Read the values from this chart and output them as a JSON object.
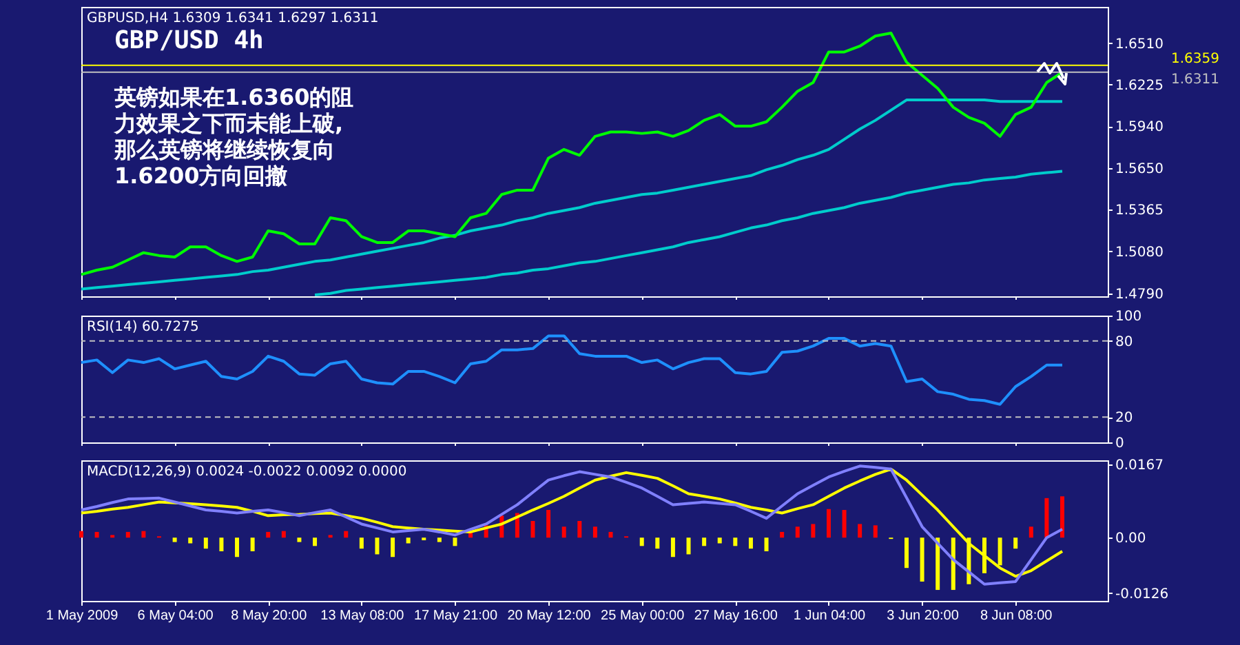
{
  "chart_data": [
    {
      "type": "line",
      "title": "GBP/USD 4h",
      "subtitle": "GBPUSD,H4 1.6309 1.6341 1.6297 1.6311",
      "series": [
        {
          "color": "#00cccc",
          "values": [
            null,
            null,
            null,
            null,
            null,
            null,
            null,
            null,
            null,
            null,
            null,
            null,
            null,
            null,
            null,
            1.478,
            1.479,
            1.481,
            1.482,
            1.483,
            1.484,
            1.485,
            1.486,
            1.487,
            1.488,
            1.489,
            1.49,
            1.492,
            1.493,
            1.495,
            1.496,
            1.498,
            1.5,
            1.501,
            1.503,
            1.505,
            1.507,
            1.509,
            1.511,
            1.514,
            1.516,
            1.518,
            1.521,
            1.524,
            1.526,
            1.529,
            1.531,
            1.534,
            1.536,
            1.538,
            1.541,
            1.543,
            1.545,
            1.548,
            1.55,
            1.552,
            1.554,
            1.555,
            1.557,
            1.558,
            1.559,
            1.561,
            1.562,
            1.563
          ]
        },
        {
          "color": "#00cccc",
          "values": [
            1.482,
            1.483,
            1.484,
            1.485,
            1.486,
            1.487,
            1.488,
            1.489,
            1.49,
            1.491,
            1.492,
            1.494,
            1.495,
            1.497,
            1.499,
            1.501,
            1.502,
            1.504,
            1.506,
            1.508,
            1.51,
            1.512,
            1.514,
            1.517,
            1.519,
            1.522,
            1.524,
            1.526,
            1.529,
            1.531,
            1.534,
            1.536,
            1.538,
            1.541,
            1.543,
            1.545,
            1.547,
            1.548,
            1.55,
            1.552,
            1.554,
            1.556,
            1.558,
            1.56,
            1.564,
            1.567,
            1.571,
            1.574,
            1.578,
            1.585,
            1.592,
            1.598,
            1.605,
            1.612,
            1.612,
            1.612,
            1.612,
            1.612,
            1.612,
            1.611,
            1.611,
            1.611,
            1.611,
            1.611
          ]
        },
        {
          "color": "#00ff00",
          "values": [
            1.492,
            1.495,
            1.497,
            1.502,
            1.507,
            1.505,
            1.504,
            1.511,
            1.511,
            1.505,
            1.501,
            1.504,
            1.522,
            1.52,
            1.513,
            1.513,
            1.531,
            1.529,
            1.518,
            1.514,
            1.514,
            1.522,
            1.522,
            1.52,
            1.518,
            1.531,
            1.534,
            1.547,
            1.55,
            1.55,
            1.572,
            1.578,
            1.574,
            1.587,
            1.59,
            1.59,
            1.589,
            1.59,
            1.587,
            1.591,
            1.598,
            1.602,
            1.594,
            1.594,
            1.597,
            1.607,
            1.618,
            1.624,
            1.645,
            1.645,
            1.649,
            1.656,
            1.658,
            1.638,
            1.629,
            1.62,
            1.607,
            1.6,
            1.596,
            1.587,
            1.602,
            1.607,
            1.624,
            1.631
          ]
        }
      ],
      "ylim": [
        1.477,
        1.676
      ],
      "yticks": [
        {
          "value": 1.479,
          "label": "1.4790"
        },
        {
          "value": 1.508,
          "label": "1.5080"
        },
        {
          "value": 1.5365,
          "label": "1.5365"
        },
        {
          "value": 1.565,
          "label": "1.5650"
        },
        {
          "value": 1.594,
          "label": "1.5940"
        },
        {
          "value": 1.6225,
          "label": "1.6225"
        },
        {
          "value": 1.651,
          "label": "1.6510"
        }
      ],
      "ref_lines": [
        {
          "axis": "y",
          "value": 1.6359,
          "label": "1.6359",
          "color": "#ffff00"
        },
        {
          "axis": "y",
          "value": 1.6311,
          "label": "1.6311",
          "color": "#c0c0c0"
        }
      ],
      "annotations": [
        "英镑如果在1.6360的阻力效果之下而未能上破,那么英镑将继续恢复向1.6200方向回撤"
      ],
      "tick_labels": "y"
    },
    {
      "type": "line",
      "title": "RSI(14) 60.7275",
      "series": [
        {
          "color": "#1e90ff",
          "values": [
            63,
            65,
            55,
            65,
            63,
            66,
            58,
            61,
            64,
            52,
            50,
            56,
            68,
            64,
            54,
            53,
            62,
            64,
            50,
            47,
            46,
            56,
            56,
            52,
            47,
            62,
            64,
            73,
            73,
            74,
            84,
            84,
            70,
            68,
            68,
            68,
            63,
            65,
            58,
            63,
            66,
            66,
            55,
            54,
            56,
            71,
            72,
            76,
            82,
            82,
            76,
            78,
            76,
            48,
            50,
            40,
            38,
            34,
            33,
            30,
            44,
            52,
            61,
            61
          ]
        }
      ],
      "ylim": [
        0,
        100
      ],
      "yticks": [
        0,
        20,
        80,
        100
      ],
      "ref_lines": [
        {
          "axis": "y",
          "value": 80,
          "color": "#c0c0c0",
          "line_style": "dashed"
        },
        {
          "axis": "y",
          "value": 20,
          "color": "#c0c0c0",
          "line_style": "dashed"
        }
      ],
      "tick_labels": "y"
    },
    {
      "type": "bar",
      "title": "MACD(12,26,9) 0.0024 -0.0022 0.0092 0.0000",
      "categories": [
        "1 May 2009",
        null,
        null,
        null,
        null,
        null,
        "6 May 04:00",
        null,
        null,
        null,
        null,
        null,
        "8 May 20:00",
        null,
        null,
        null,
        null,
        null,
        "13 May 08:00",
        null,
        null,
        null,
        null,
        null,
        "17 May 21:00",
        null,
        null,
        null,
        null,
        null,
        "20 May 12:00",
        null,
        null,
        null,
        null,
        null,
        "25 May 00:00",
        null,
        null,
        null,
        null,
        null,
        "27 May 16:00",
        null,
        null,
        null,
        null,
        null,
        "1 Jun 04:00",
        null,
        null,
        null,
        null,
        null,
        "3 Jun 20:00",
        null,
        null,
        null,
        null,
        null,
        "8 Jun 08:00",
        null,
        null,
        null
      ],
      "series": [
        {
          "colors": [
            "#ff0000",
            "#ff0000",
            "#ff0000",
            "#ff0000",
            "#ff0000",
            "#ff0000",
            "#ffff00",
            "#ffff00",
            "#ffff00",
            "#ffff00",
            "#ffff00",
            "#ffff00",
            "#ff0000",
            "#ff0000",
            "#ffff00",
            "#ffff00",
            "#ff0000",
            "#ff0000",
            "#ffff00",
            "#ffff00",
            "#ffff00",
            "#ffff00",
            "#ffff00",
            "#ffff00",
            "#ffff00",
            "#ff0000",
            "#ff0000",
            "#ff0000",
            "#ff0000",
            "#ff0000",
            "#ff0000",
            "#ff0000",
            "#ff0000",
            "#ff0000",
            "#ff0000",
            "#ff0000",
            "#ffff00",
            "#ffff00",
            "#ffff00",
            "#ffff00",
            "#ffff00",
            "#ffff00",
            "#ffff00",
            "#ffff00",
            "#ffff00",
            "#ff0000",
            "#ff0000",
            "#ff0000",
            "#ff0000",
            "#ff0000",
            "#ff0000",
            "#ff0000",
            "#ffff00",
            "#ffff00",
            "#ffff00",
            "#ffff00",
            "#ffff00",
            "#ffff00",
            "#ffff00",
            "#ffff00",
            "#ffff00",
            "#ff0000",
            "#ff0000",
            "#ff0000"
          ],
          "values": [
            0.0015,
            0.0013,
            0.0006,
            0.0013,
            0.0015,
            0.0003,
            -0.001,
            -0.0013,
            -0.0025,
            -0.0031,
            -0.0044,
            -0.0031,
            0.0013,
            0.0015,
            -0.001,
            -0.0019,
            0.0006,
            0.0015,
            -0.0025,
            -0.0038,
            -0.0044,
            -0.0013,
            -0.0006,
            -0.001,
            -0.0019,
            0.0013,
            0.0028,
            0.005,
            0.0056,
            0.0038,
            0.0063,
            0.0025,
            0.0038,
            0.0025,
            0.0013,
            0.0003,
            -0.0019,
            -0.0025,
            -0.0044,
            -0.0038,
            -0.0019,
            -0.0013,
            -0.0019,
            -0.0025,
            -0.0031,
            0.0013,
            0.0025,
            0.0031,
            0.0065,
            0.0063,
            0.0031,
            0.0028,
            -0.0003,
            -0.0069,
            -0.01,
            -0.0119,
            -0.0119,
            -0.0106,
            -0.0081,
            -0.0063,
            -0.0025,
            0.0025,
            0.009,
            0.0094
          ]
        },
        {
          "type": "line",
          "color": "#ffff00",
          "values": [
            0.0056,
            0.006,
            0.0065,
            0.0069,
            0.0075,
            0.0081,
            0.0079,
            0.0077,
            0.0075,
            0.0072,
            0.0069,
            0.006,
            0.005,
            0.0052,
            0.0053,
            0.0055,
            0.0056,
            0.005,
            0.0044,
            0.0035,
            0.0025,
            0.0022,
            0.0019,
            0.0017,
            0.0015,
            0.0013,
            0.0022,
            0.0031,
            0.0047,
            0.0063,
            0.0078,
            0.0094,
            0.0113,
            0.0131,
            0.014,
            0.0148,
            0.0142,
            0.0135,
            0.0118,
            0.01,
            0.0094,
            0.0088,
            0.0079,
            0.0069,
            0.0063,
            0.0056,
            0.0066,
            0.0075,
            0.0094,
            0.0113,
            0.0129,
            0.0144,
            0.0156,
            0.0131,
            0.0097,
            0.0063,
            0.0025,
            -0.0013,
            -0.0041,
            -0.0069,
            -0.0088,
            -0.0075,
            -0.0053,
            -0.0031
          ]
        },
        {
          "type": "line",
          "color": "#8080ff",
          "values": [
            0.0063,
            0.0071,
            0.008,
            0.0088,
            0.0089,
            0.009,
            0.0081,
            0.0072,
            0.0063,
            0.006,
            0.0056,
            0.006,
            0.0063,
            0.0057,
            0.005,
            0.0057,
            0.0063,
            0.0047,
            0.0031,
            0.0022,
            0.0013,
            0.0016,
            0.0019,
            0.0013,
            0.0006,
            0.0019,
            0.0031,
            0.0053,
            0.0075,
            0.0103,
            0.0131,
            0.0141,
            0.015,
            0.0144,
            0.0138,
            0.0126,
            0.0113,
            0.0094,
            0.0075,
            0.0078,
            0.0081,
            0.0078,
            0.0075,
            0.006,
            0.0044,
            0.0072,
            0.01,
            0.0119,
            0.0138,
            0.0151,
            0.0163,
            0.016,
            0.0156,
            0.0091,
            0.0025,
            -0.0013,
            -0.005,
            -0.0078,
            -0.0106,
            -0.0103,
            -0.01,
            -0.005,
            0.0,
            0.0019
          ]
        }
      ],
      "ylim": [
        -0.0144,
        0.0176
      ],
      "yticks": [
        -0.0126,
        {
          "value": 0,
          "label": "0.00"
        },
        0.0167
      ]
    }
  ]
}
